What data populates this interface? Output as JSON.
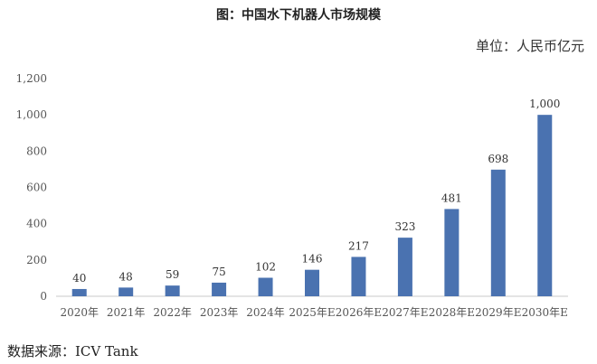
{
  "header": {
    "title": "图：中国水下机器人市场规模",
    "unit": "单位：人民币亿元"
  },
  "footer": {
    "source": "数据来源：ICV Tank"
  },
  "colors": {
    "bar": "#4a72b0",
    "axis": "#c8c8c8"
  },
  "chart_data": {
    "type": "bar",
    "title": "图：中国水下机器人市场规模",
    "ylabel": "单位：人民币亿元",
    "categories": [
      "2020年",
      "2021年",
      "2022年",
      "2023年",
      "2024年",
      "2025年E",
      "2026年E",
      "2027年E",
      "2028年E",
      "2029年E",
      "2030年E"
    ],
    "values": [
      40,
      48,
      59,
      75,
      102,
      146,
      217,
      323,
      481,
      698,
      1000
    ],
    "value_labels": [
      "40",
      "48",
      "59",
      "75",
      "102",
      "146",
      "217",
      "323",
      "481",
      "698",
      "1,000"
    ],
    "ylim": [
      0,
      1200
    ],
    "yticks": [
      0,
      200,
      400,
      600,
      800,
      1000,
      1200
    ],
    "ytick_labels": [
      "0",
      "200",
      "400",
      "600",
      "800",
      "1,000",
      "1,200"
    ],
    "grid": false,
    "legend": "none"
  }
}
